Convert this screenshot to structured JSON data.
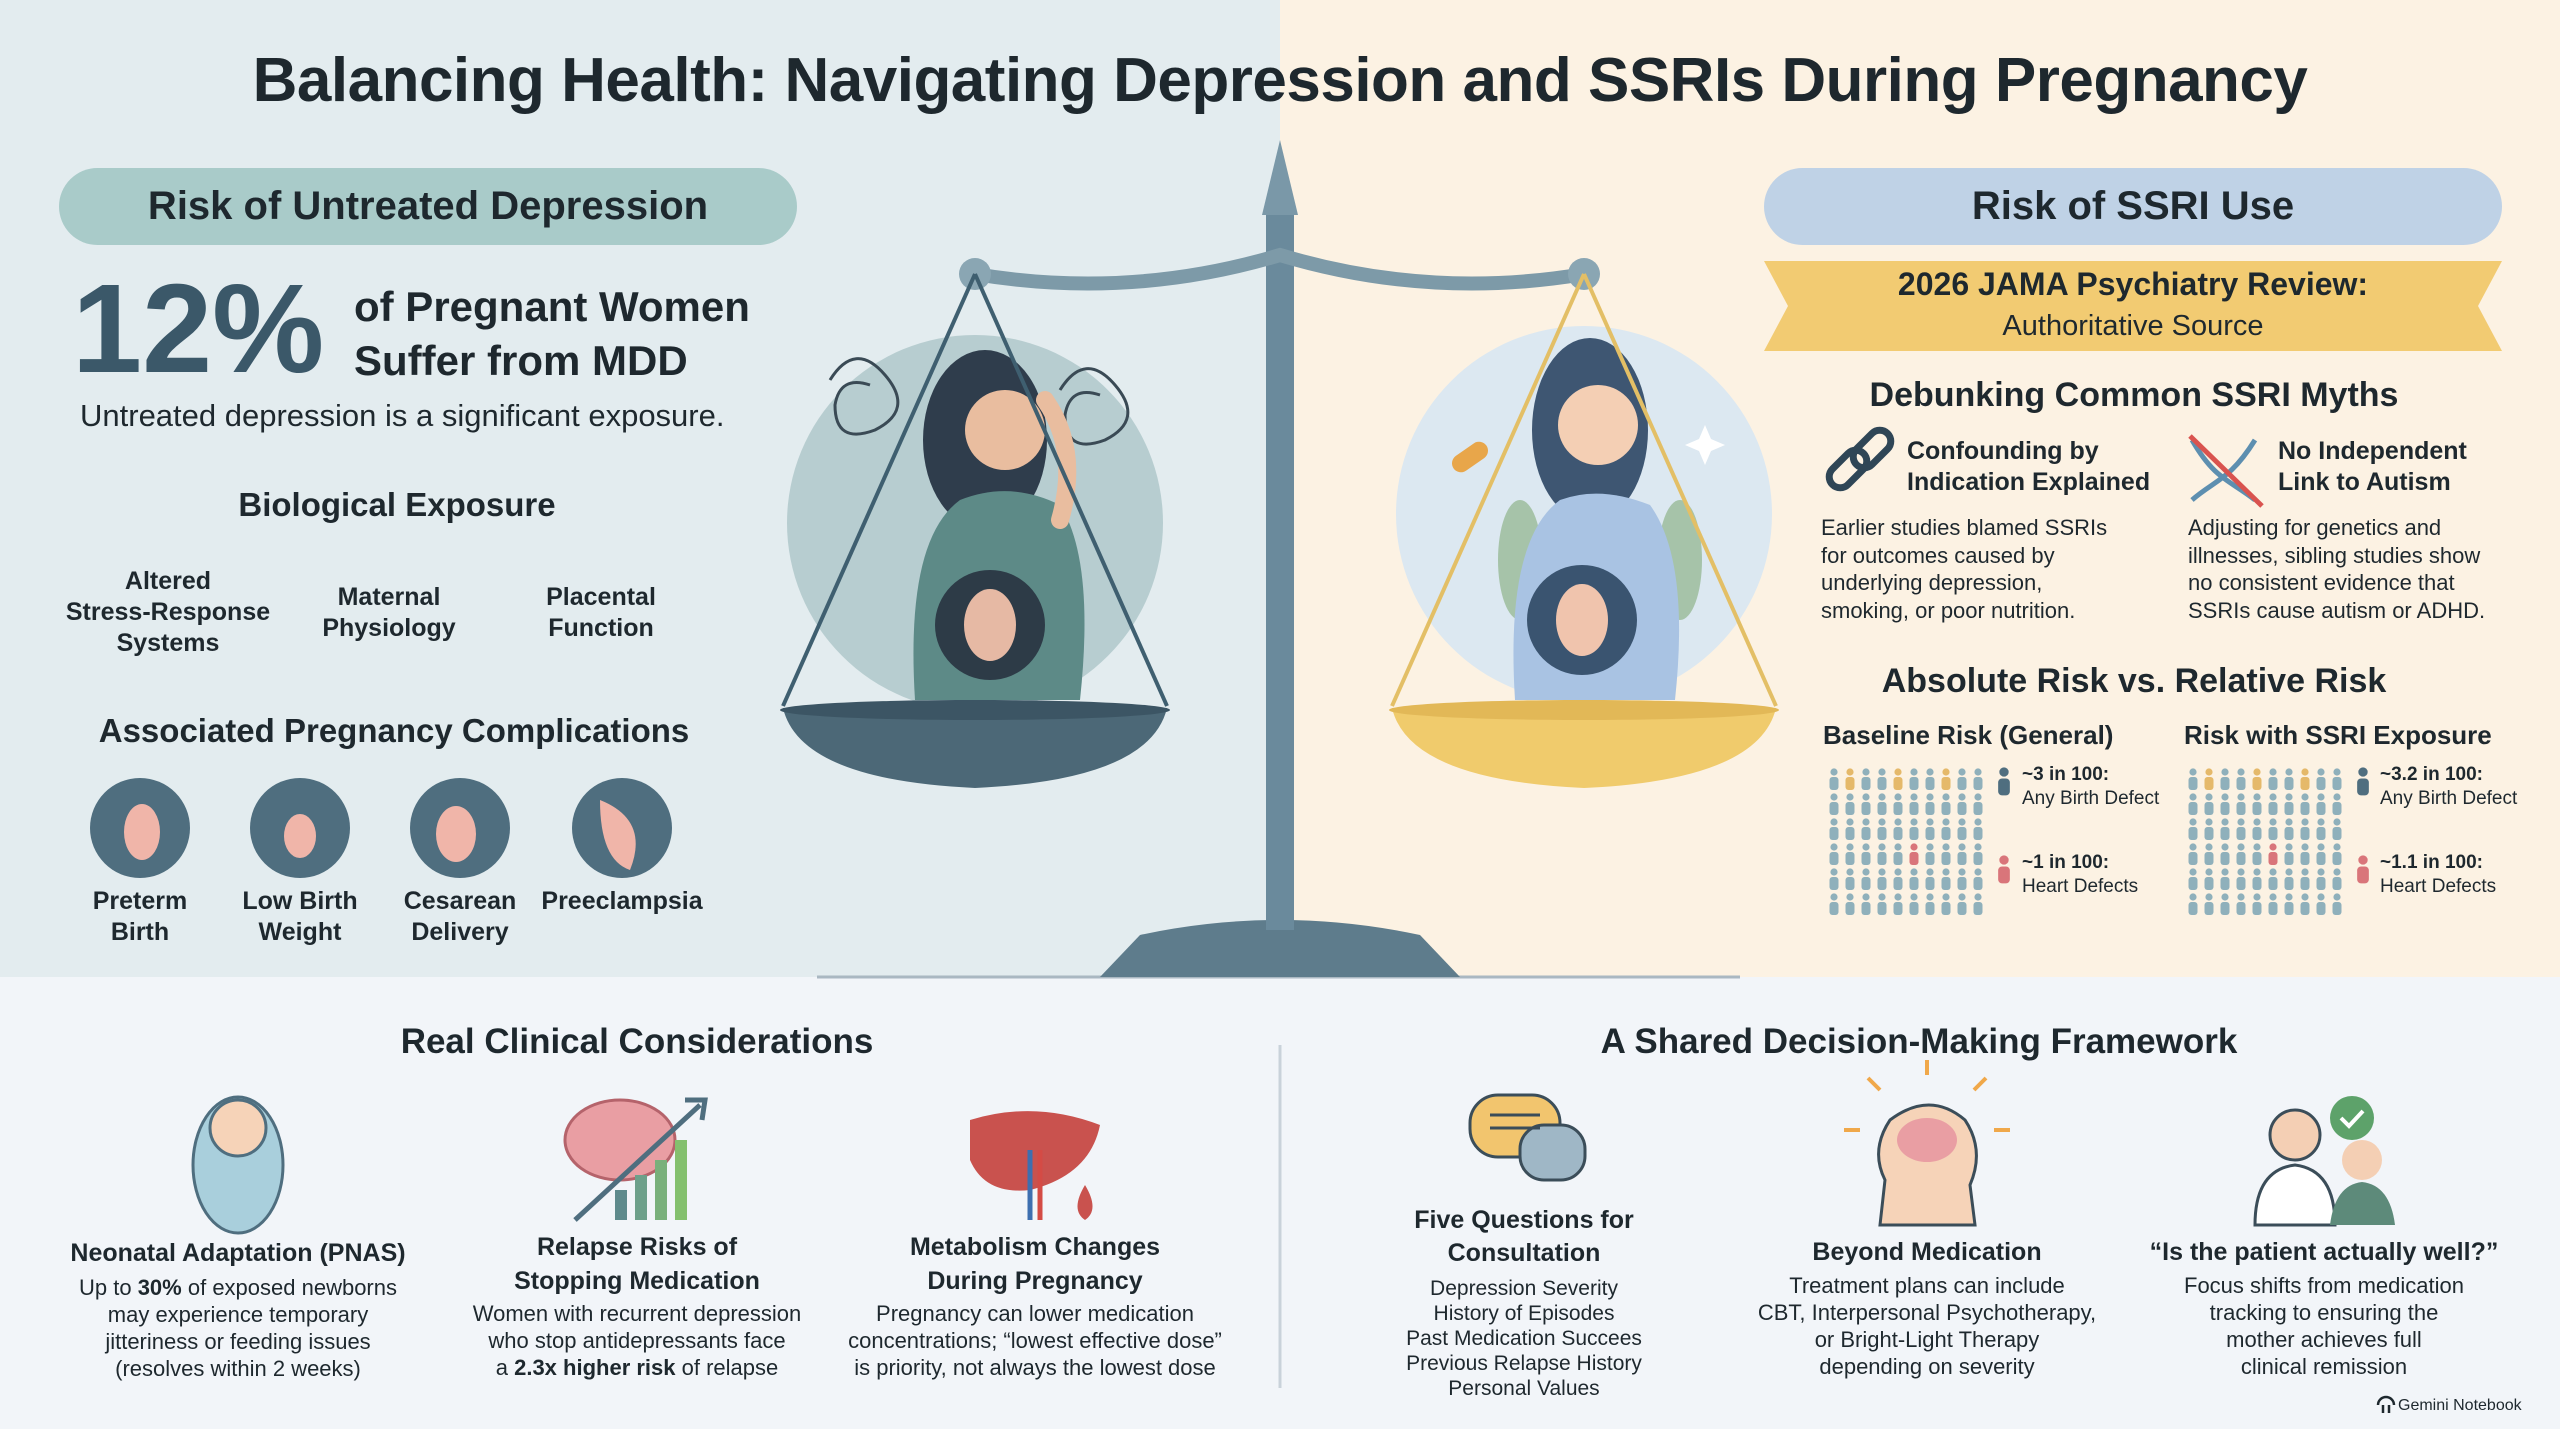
{
  "title": "Balancing Health: Navigating Depression and SSRIs During Pregnancy",
  "untreated": {
    "heading": "Risk of Untreated Depression",
    "stat": "12%",
    "stat_caption": [
      "of Pregnant Women",
      "Suffer from MDD"
    ],
    "note": "Untreated depression is a significant exposure.",
    "biological": {
      "heading": "Biological Exposure",
      "items": [
        [
          "Altered",
          "Stress-Response",
          "Systems"
        ],
        [
          "Maternal",
          "Physiology"
        ],
        [
          "Placental",
          "Function"
        ]
      ]
    },
    "complications": {
      "heading": "Associated Pregnancy Complications",
      "items": [
        [
          "Preterm",
          "Birth"
        ],
        [
          "Low Birth",
          "Weight"
        ],
        [
          "Cesarean",
          "Delivery"
        ],
        [
          "Preeclampsia"
        ]
      ]
    }
  },
  "ssri": {
    "heading": "Risk of SSRI Use",
    "source": {
      "title": "2026 JAMA Psychiatry Review:",
      "subtitle": "Authoritative Source"
    },
    "myths": {
      "heading": "Debunking Common SSRI Myths",
      "items": [
        {
          "title": [
            "Confounding by",
            "Indication Explained"
          ],
          "body": [
            "Earlier studies blamed SSRIs",
            "for outcomes caused by",
            "underlying depression,",
            "smoking, or poor nutrition."
          ]
        },
        {
          "title": [
            "No Independent",
            "Link to Autism"
          ],
          "body": [
            "Adjusting for genetics and",
            "illnesses, sibling studies show",
            "no consistent evidence that",
            "SSRIs cause autism or ADHD."
          ]
        }
      ]
    },
    "risk": {
      "heading": "Absolute Risk vs. Relative Risk",
      "groups": [
        {
          "title": "Baseline Risk (General)",
          "stats": [
            {
              "rate": "~3 in 100:",
              "outcome": "Any Birth Defect"
            },
            {
              "rate": "~1 in 100:",
              "outcome": "Heart Defects"
            }
          ]
        },
        {
          "title": "Risk with SSRI Exposure",
          "stats": [
            {
              "rate": "~3.2 in 100:",
              "outcome": "Any Birth Defect"
            },
            {
              "rate": "~1.1 in 100:",
              "outcome": "Heart Defects"
            }
          ]
        }
      ]
    }
  },
  "clinical": {
    "heading": "Real Clinical Considerations",
    "items": [
      {
        "title": [
          "Neonatal Adaptation (PNAS)"
        ],
        "body": [
          {
            "before": "Up to ",
            "bold": "30%",
            "after": " of exposed newborns"
          },
          "may experience temporary",
          "jitteriness or feeding issues",
          "(resolves within 2 weeks)"
        ]
      },
      {
        "title": [
          "Relapse Risks of",
          "Stopping Medication"
        ],
        "body": [
          "Women with recurrent depression",
          "who stop antidepressants face",
          {
            "before": "a ",
            "bold": "2.3x higher risk",
            "after": " of relapse"
          }
        ]
      },
      {
        "title": [
          "Metabolism Changes",
          "During Pregnancy"
        ],
        "body": [
          "Pregnancy can lower medication",
          "concentrations; “lowest effective dose”",
          "is priority, not always the lowest dose"
        ]
      }
    ]
  },
  "framework": {
    "heading": "A Shared Decision-Making Framework",
    "items": [
      {
        "title": [
          "Five Questions for",
          "Consultation"
        ],
        "body": [
          "Depression Severity",
          "History of Episodes",
          "Past Medication Succees",
          "Previous Relapse History",
          "Personal Values"
        ]
      },
      {
        "title": [
          "Beyond Medication"
        ],
        "body": [
          "Treatment plans can include",
          "CBT, Interpersonal Psychotherapy,",
          "or Bright-Light Therapy",
          "depending on severity"
        ]
      },
      {
        "title": [
          "“Is the patient actually well?”"
        ],
        "body": [
          "Focus shifts from medication",
          "tracking to ensuring the",
          "mother achieves full",
          "clinical remission"
        ]
      }
    ]
  },
  "footer": "Gemini Notebook"
}
